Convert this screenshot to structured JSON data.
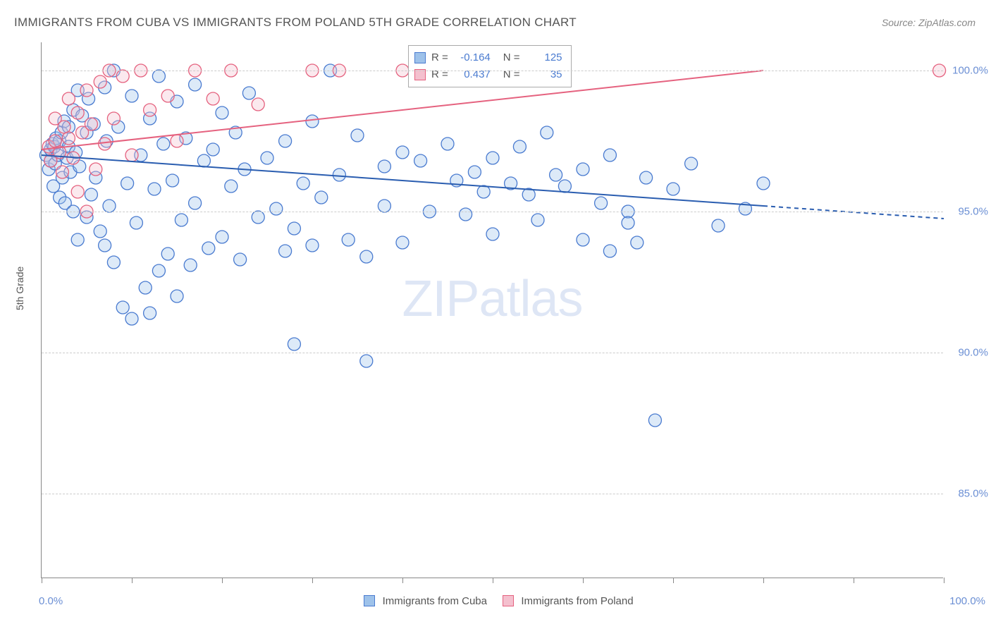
{
  "title": "IMMIGRANTS FROM CUBA VS IMMIGRANTS FROM POLAND 5TH GRADE CORRELATION CHART",
  "source_label": "Source: ZipAtlas.com",
  "ylabel": "5th Grade",
  "watermark_a": "ZIP",
  "watermark_b": "atlas",
  "chart": {
    "type": "scatter",
    "background_color": "#ffffff",
    "grid_color": "#cccccc",
    "axis_color": "#888888",
    "xlim": [
      0,
      100
    ],
    "ylim": [
      82,
      101
    ],
    "y_ticks": [
      85.0,
      90.0,
      95.0,
      100.0
    ],
    "y_tick_labels": [
      "85.0%",
      "90.0%",
      "95.0%",
      "100.0%"
    ],
    "x_ticks": [
      0,
      10,
      20,
      30,
      40,
      50,
      60,
      70,
      80,
      90,
      100
    ],
    "x_min_label": "0.0%",
    "x_max_label": "100.0%",
    "marker_radius": 9,
    "marker_fill_opacity": 0.35,
    "marker_stroke_width": 1.3,
    "series": [
      {
        "name": "Immigrants from Cuba",
        "color_fill": "#9ec2ea",
        "color_stroke": "#4a7bd0",
        "trend_color": "#2a5db0",
        "trend_width": 2,
        "trend_y_at_x0": 97.0,
        "trend_y_at_x80": 95.2,
        "trend_extrapolate_to_x": 100,
        "trend_dash_after_x": 80,
        "R": "-0.164",
        "N": "125",
        "points": [
          [
            0.5,
            97.0
          ],
          [
            0.8,
            96.5
          ],
          [
            1.0,
            97.2
          ],
          [
            1.0,
            96.8
          ],
          [
            1.2,
            97.4
          ],
          [
            1.3,
            95.9
          ],
          [
            1.4,
            97.3
          ],
          [
            1.5,
            96.7
          ],
          [
            1.6,
            97.6
          ],
          [
            1.8,
            97.0
          ],
          [
            2.0,
            97.5
          ],
          [
            2.0,
            95.5
          ],
          [
            2.2,
            97.8
          ],
          [
            2.3,
            96.2
          ],
          [
            2.5,
            98.2
          ],
          [
            2.6,
            95.3
          ],
          [
            2.8,
            96.9
          ],
          [
            3.0,
            98.0
          ],
          [
            3.0,
            97.3
          ],
          [
            3.2,
            96.4
          ],
          [
            3.5,
            98.6
          ],
          [
            3.5,
            95.0
          ],
          [
            3.8,
            97.1
          ],
          [
            4.0,
            99.3
          ],
          [
            4.0,
            94.0
          ],
          [
            4.2,
            96.6
          ],
          [
            4.5,
            98.4
          ],
          [
            5.0,
            94.8
          ],
          [
            5.0,
            97.8
          ],
          [
            5.2,
            99.0
          ],
          [
            5.5,
            95.6
          ],
          [
            5.8,
            98.1
          ],
          [
            6.0,
            96.2
          ],
          [
            6.5,
            94.3
          ],
          [
            7.0,
            99.4
          ],
          [
            7.0,
            93.8
          ],
          [
            7.2,
            97.5
          ],
          [
            7.5,
            95.2
          ],
          [
            8.0,
            100.0
          ],
          [
            8.0,
            93.2
          ],
          [
            8.5,
            98.0
          ],
          [
            9.0,
            91.6
          ],
          [
            9.5,
            96.0
          ],
          [
            10.0,
            99.1
          ],
          [
            10.0,
            91.2
          ],
          [
            10.5,
            94.6
          ],
          [
            11.0,
            97.0
          ],
          [
            11.5,
            92.3
          ],
          [
            12.0,
            91.4
          ],
          [
            12.0,
            98.3
          ],
          [
            12.5,
            95.8
          ],
          [
            13.0,
            99.8
          ],
          [
            13.0,
            92.9
          ],
          [
            13.5,
            97.4
          ],
          [
            14.0,
            93.5
          ],
          [
            14.5,
            96.1
          ],
          [
            15.0,
            98.9
          ],
          [
            15.0,
            92.0
          ],
          [
            15.5,
            94.7
          ],
          [
            16.0,
            97.6
          ],
          [
            16.5,
            93.1
          ],
          [
            17.0,
            99.5
          ],
          [
            17.0,
            95.3
          ],
          [
            18.0,
            96.8
          ],
          [
            18.5,
            93.7
          ],
          [
            19.0,
            97.2
          ],
          [
            20.0,
            98.5
          ],
          [
            20.0,
            94.1
          ],
          [
            21.0,
            95.9
          ],
          [
            21.5,
            97.8
          ],
          [
            22.0,
            93.3
          ],
          [
            22.5,
            96.5
          ],
          [
            23.0,
            99.2
          ],
          [
            24.0,
            94.8
          ],
          [
            25.0,
            96.9
          ],
          [
            26.0,
            95.1
          ],
          [
            27.0,
            93.6
          ],
          [
            27.0,
            97.5
          ],
          [
            28.0,
            94.4
          ],
          [
            28.0,
            90.3
          ],
          [
            29.0,
            96.0
          ],
          [
            30.0,
            98.2
          ],
          [
            30.0,
            93.8
          ],
          [
            31.0,
            95.5
          ],
          [
            32.0,
            100.0
          ],
          [
            33.0,
            96.3
          ],
          [
            34.0,
            94.0
          ],
          [
            35.0,
            97.7
          ],
          [
            36.0,
            93.4
          ],
          [
            36.0,
            89.7
          ],
          [
            38.0,
            96.6
          ],
          [
            38.0,
            95.2
          ],
          [
            40.0,
            97.1
          ],
          [
            40.0,
            93.9
          ],
          [
            42.0,
            96.8
          ],
          [
            43.0,
            95.0
          ],
          [
            45.0,
            97.4
          ],
          [
            46.0,
            96.1
          ],
          [
            47.0,
            94.9
          ],
          [
            48.0,
            96.4
          ],
          [
            49.0,
            95.7
          ],
          [
            50.0,
            96.9
          ],
          [
            50.0,
            94.2
          ],
          [
            52.0,
            96.0
          ],
          [
            53.0,
            97.3
          ],
          [
            54.0,
            95.6
          ],
          [
            55.0,
            94.7
          ],
          [
            56.0,
            97.8
          ],
          [
            57.0,
            96.3
          ],
          [
            58.0,
            95.9
          ],
          [
            60.0,
            96.5
          ],
          [
            60.0,
            94.0
          ],
          [
            62.0,
            95.3
          ],
          [
            63.0,
            97.0
          ],
          [
            63.0,
            93.6
          ],
          [
            65.0,
            95.0
          ],
          [
            65.0,
            94.6
          ],
          [
            66.0,
            93.9
          ],
          [
            67.0,
            96.2
          ],
          [
            68.0,
            87.6
          ],
          [
            70.0,
            95.8
          ],
          [
            72.0,
            96.7
          ],
          [
            75.0,
            94.5
          ],
          [
            78.0,
            95.1
          ],
          [
            80.0,
            96.0
          ]
        ]
      },
      {
        "name": "Immigrants from Poland",
        "color_fill": "#f4c0ce",
        "color_stroke": "#e5627f",
        "trend_color": "#e5627f",
        "trend_width": 2,
        "trend_y_at_x0": 97.2,
        "trend_y_at_x80": 100.0,
        "trend_extrapolate_to_x": 80,
        "trend_dash_after_x": 999,
        "R": "0.437",
        "N": "35",
        "points": [
          [
            0.8,
            97.3
          ],
          [
            1.0,
            96.8
          ],
          [
            1.5,
            97.5
          ],
          [
            1.5,
            98.3
          ],
          [
            2.0,
            97.1
          ],
          [
            2.3,
            96.4
          ],
          [
            2.5,
            98.0
          ],
          [
            3.0,
            97.6
          ],
          [
            3.0,
            99.0
          ],
          [
            3.5,
            96.9
          ],
          [
            4.0,
            98.5
          ],
          [
            4.0,
            95.7
          ],
          [
            4.5,
            97.8
          ],
          [
            5.0,
            99.3
          ],
          [
            5.0,
            95.0
          ],
          [
            5.5,
            98.1
          ],
          [
            6.0,
            96.5
          ],
          [
            6.5,
            99.6
          ],
          [
            7.0,
            97.4
          ],
          [
            7.5,
            100.0
          ],
          [
            8.0,
            98.3
          ],
          [
            9.0,
            99.8
          ],
          [
            10.0,
            97.0
          ],
          [
            11.0,
            100.0
          ],
          [
            12.0,
            98.6
          ],
          [
            14.0,
            99.1
          ],
          [
            15.0,
            97.5
          ],
          [
            17.0,
            100.0
          ],
          [
            19.0,
            99.0
          ],
          [
            21.0,
            100.0
          ],
          [
            24.0,
            98.8
          ],
          [
            30.0,
            100.0
          ],
          [
            33.0,
            100.0
          ],
          [
            40.0,
            100.0
          ],
          [
            99.5,
            100.0
          ]
        ]
      }
    ]
  },
  "bottom_legend": {
    "series1_label": "Immigrants from Cuba",
    "series2_label": "Immigrants from Poland"
  },
  "stat_box": {
    "R_label": "R =",
    "N_label": "N ="
  }
}
